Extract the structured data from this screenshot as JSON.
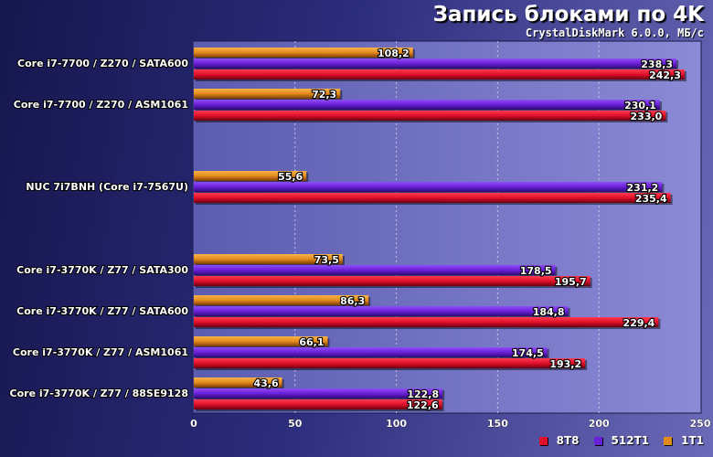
{
  "chart_data": {
    "type": "bar",
    "orientation": "horizontal",
    "title": "Запись блоками по 4K",
    "subtitle": "CrystalDiskMark 6.0.0, МБ/с",
    "categories": [
      "Core i7-7700 / Z270 / SATA600",
      "Core i7-7700 / Z270 / ASM1061",
      "NUC 7i7BNH (Core i7-7567U)",
      "Core i7-3770K / Z77 / SATA300",
      "Core i7-3770K / Z77 / SATA600",
      "Core i7-3770K / Z77 / ASM1061",
      "Core i7-3770K / Z77 / 88SE9128"
    ],
    "series": [
      {
        "name": "1T1",
        "color": "#e38a1c",
        "values": [
          108.2,
          72.3,
          55.6,
          73.5,
          86.3,
          66.1,
          43.6
        ]
      },
      {
        "name": "512T1",
        "color": "#6a1fd8",
        "values": [
          238.3,
          230.1,
          231.2,
          178.5,
          184.8,
          174.5,
          122.8
        ]
      },
      {
        "name": "8T8",
        "color": "#e0102a",
        "values": [
          242.3,
          233.0,
          235.4,
          195.7,
          229.4,
          193.2,
          122.6
        ]
      }
    ],
    "value_labels": [
      [
        "108,2",
        "72,3",
        "55,6",
        "73,5",
        "86,3",
        "66,1",
        "43,6"
      ],
      [
        "238,3",
        "230,1",
        "231,2",
        "178,5",
        "184,8",
        "174,5",
        "122,8"
      ],
      [
        "242,3",
        "233,0",
        "235,4",
        "195,7",
        "229,4",
        "193,2",
        "122,6"
      ]
    ],
    "xlim": [
      0,
      250
    ],
    "xticks": [
      0,
      50,
      100,
      150,
      200,
      250
    ],
    "xlabel": "",
    "ylabel": "",
    "grid": true,
    "legend": {
      "position": "bottom-right",
      "order": [
        "8T8",
        "512T1",
        "1T1"
      ]
    }
  }
}
